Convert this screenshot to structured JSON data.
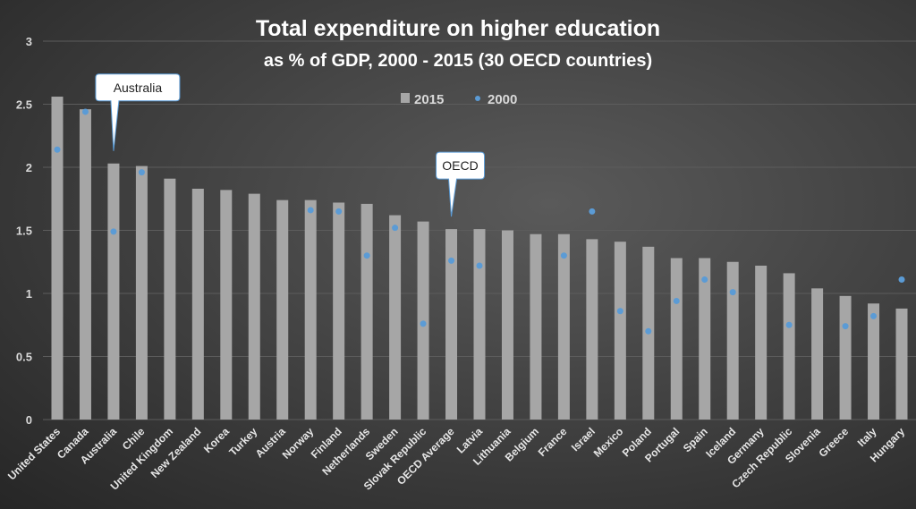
{
  "chart_data": {
    "type": "bar",
    "title": "Total expenditure on higher education",
    "subtitle": "as % of GDP, 2000 - 2015 (30 OECD countries)",
    "xlabel": "",
    "ylabel": "",
    "ylim": [
      0,
      3
    ],
    "yticks": [
      "0",
      "0.5",
      "1",
      "1.5",
      "2",
      "2.5",
      "3"
    ],
    "grid": true,
    "legend_placement": "top-center",
    "categories": [
      "United States",
      "Canada",
      "Australia",
      "Chile",
      "United Kingdom",
      "New Zealand",
      "Korea",
      "Turkey",
      "Austria",
      "Norway",
      "Finland",
      "Netherlands",
      "Sweden",
      "Slovak Republic",
      "OECD Average",
      "Latvia",
      "Lithuania",
      "Belgium",
      "France",
      "Israel",
      "Mexico",
      "Poland",
      "Portugal",
      "Spain",
      "Iceland",
      "Germany",
      "Czech Republic",
      "Slovenia",
      "Greece",
      "Italy",
      "Hungary"
    ],
    "series": [
      {
        "name": "2015",
        "kind": "bar",
        "color": "#a6a6a6",
        "values": [
          2.56,
          2.46,
          2.03,
          2.01,
          1.91,
          1.83,
          1.82,
          1.79,
          1.74,
          1.74,
          1.72,
          1.71,
          1.62,
          1.57,
          1.51,
          1.51,
          1.5,
          1.47,
          1.47,
          1.43,
          1.41,
          1.37,
          1.28,
          1.28,
          1.25,
          1.22,
          1.16,
          1.04,
          0.98,
          0.92,
          0.88
        ]
      },
      {
        "name": "2000",
        "kind": "marker",
        "color": "#5b9bd5",
        "values": [
          2.14,
          2.44,
          1.49,
          1.96,
          null,
          null,
          null,
          null,
          null,
          1.66,
          1.65,
          1.3,
          1.52,
          0.76,
          1.26,
          1.22,
          null,
          null,
          1.3,
          1.65,
          0.86,
          0.7,
          0.94,
          1.11,
          1.01,
          null,
          0.75,
          null,
          0.74,
          0.82,
          1.11
        ]
      }
    ],
    "annotations": [
      {
        "text": "Australia",
        "category": "Australia"
      },
      {
        "text": "OECD",
        "category": "OECD Average"
      }
    ]
  }
}
